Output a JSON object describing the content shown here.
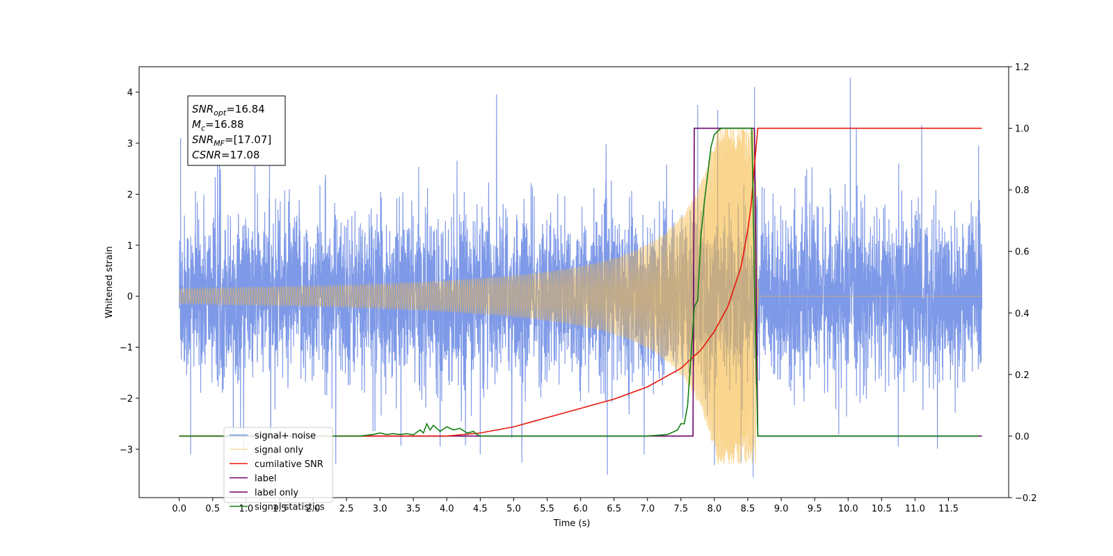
{
  "chart_data": {
    "type": "line",
    "xlabel": "Time (s)",
    "ylabel": "Whitened strain",
    "xlim": [
      -0.6,
      12.4
    ],
    "ylim": [
      -3.95,
      4.5
    ],
    "y2lim": [
      -0.2,
      1.2
    ],
    "x_ticks": [
      0.0,
      0.5,
      1.0,
      1.5,
      2.0,
      2.5,
      3.0,
      3.5,
      4.0,
      4.5,
      5.0,
      5.5,
      6.0,
      6.5,
      7.0,
      7.5,
      8.0,
      8.5,
      9.0,
      9.5,
      10.0,
      10.5,
      11.0,
      11.5
    ],
    "x_tick_labels": [
      "0.0",
      "0.5",
      "1.0",
      "1.5",
      "2.0",
      "2.5",
      "3.0",
      "3.5",
      "4.0",
      "4.5",
      "5.0",
      "5.5",
      "6.0",
      "6.5",
      "7.0",
      "7.5",
      "8.0",
      "8.5",
      "9.0",
      "9.5",
      "10.0",
      "10.5",
      "11.0",
      "11.5"
    ],
    "y_ticks": [
      -3,
      -2,
      -1,
      0,
      1,
      2,
      3,
      4
    ],
    "y_tick_labels": [
      "−3",
      "−2",
      "−1",
      "0",
      "1",
      "2",
      "3",
      "4"
    ],
    "y2_ticks": [
      -0.2,
      0.0,
      0.2,
      0.4,
      0.6,
      0.8,
      1.0,
      1.2
    ],
    "y2_tick_labels": [
      "−0.2",
      "0.0",
      "0.2",
      "0.4",
      "0.6",
      "0.8",
      "1.0",
      "1.2"
    ],
    "legend_placement": "lower-left",
    "grid": false,
    "series": [
      {
        "name": "signal+ noise",
        "color": "#7793e6",
        "axis": "left",
        "x_range": [
          0.0,
          12.0
        ],
        "typical_range": [
          -1.5,
          1.6
        ],
        "spikes": [
          {
            "x": 0.02,
            "y": 3.1
          },
          {
            "x": 0.17,
            "y": -3.1
          },
          {
            "x": 1.35,
            "y": 3.3
          },
          {
            "x": 3.9,
            "y": -2.95
          },
          {
            "x": 4.5,
            "y": -3.1
          },
          {
            "x": 6.4,
            "y": -3.5
          },
          {
            "x": 6.95,
            "y": -3.1
          },
          {
            "x": 7.75,
            "y": 3.75
          },
          {
            "x": 8.05,
            "y": 3.65
          },
          {
            "x": 8.4,
            "y": -3.25
          },
          {
            "x": 8.6,
            "y": 4.1
          },
          {
            "x": 8.58,
            "y": -3.55
          },
          {
            "x": 10.75,
            "y": -2.95
          },
          {
            "x": 11.1,
            "y": 3.35
          },
          {
            "x": 11.95,
            "y": 2.95
          }
        ]
      },
      {
        "name": "signal only",
        "color": "#f5b942",
        "axis": "left",
        "chirp": {
          "start": 0.0,
          "merger": 8.62,
          "end": 12.0,
          "peak_amplitude": 3.3
        }
      },
      {
        "name": "cumilative SNR",
        "color": "#e8160c",
        "axis": "right",
        "x": [
          0.0,
          4.0,
          4.5,
          5.0,
          5.5,
          6.0,
          6.5,
          7.0,
          7.5,
          7.8,
          8.0,
          8.2,
          8.4,
          8.5,
          8.55,
          8.6,
          8.65,
          12.0
        ],
        "y": [
          0.0,
          0.0,
          0.01,
          0.03,
          0.06,
          0.09,
          0.12,
          0.16,
          0.22,
          0.28,
          0.34,
          0.42,
          0.55,
          0.67,
          0.75,
          0.88,
          1.0,
          1.0
        ]
      },
      {
        "name": "label",
        "color": "#6a006a",
        "axis": "right",
        "x": [
          0.0,
          7.68,
          7.7,
          8.55,
          8.6,
          8.65,
          12.0
        ],
        "y": [
          0.0,
          0.0,
          1.0,
          1.0,
          1.0,
          0.0,
          0.0
        ]
      },
      {
        "name": "label only",
        "color": "#6a006a",
        "axis": "right",
        "x": [],
        "y": []
      },
      {
        "name": "signal statistics",
        "color": "#118011",
        "axis": "right",
        "x": [
          0.0,
          2.7,
          2.9,
          3.0,
          3.1,
          3.2,
          3.3,
          3.4,
          3.5,
          3.6,
          3.65,
          3.7,
          3.75,
          3.8,
          3.9,
          4.0,
          4.1,
          4.2,
          4.3,
          4.4,
          4.45,
          4.5,
          4.6,
          7.0,
          7.3,
          7.45,
          7.5,
          7.55,
          7.6,
          7.7,
          7.75,
          7.8,
          7.85,
          7.9,
          7.95,
          8.0,
          8.1,
          8.2,
          8.56,
          8.6,
          8.65,
          8.7,
          11.95
        ],
        "y": [
          0.0,
          0.0,
          0.005,
          0.01,
          0.005,
          0.008,
          0.005,
          0.008,
          0.004,
          0.02,
          0.01,
          0.04,
          0.02,
          0.035,
          0.015,
          0.03,
          0.02,
          0.025,
          0.01,
          0.015,
          0.005,
          0.0,
          0.0,
          0.0,
          0.005,
          0.02,
          0.04,
          0.04,
          0.1,
          0.42,
          0.44,
          0.65,
          0.76,
          0.85,
          0.94,
          0.98,
          1.0,
          1.0,
          1.0,
          0.5,
          0.0,
          0.0,
          0.0
        ]
      }
    ],
    "annotation": {
      "lines": [
        {
          "symbol": "SNR",
          "sub": "opt",
          "value": "=16.84"
        },
        {
          "symbol": "M",
          "sub": "c",
          "value": "=16.88"
        },
        {
          "symbol": "SNR",
          "sub": "MF",
          "value": "=[17.07]"
        },
        {
          "symbol": "CSNR",
          "sub": "",
          "value": "=17.08"
        }
      ]
    }
  }
}
